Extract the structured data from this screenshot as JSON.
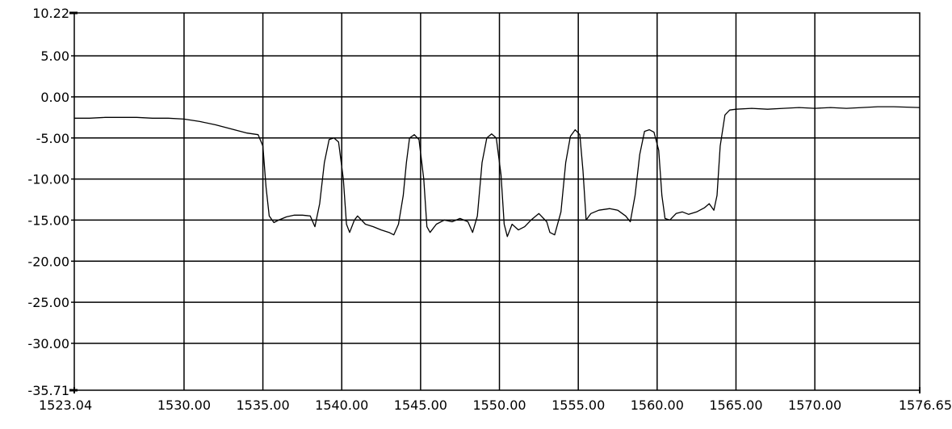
{
  "chart_data": {
    "type": "line",
    "title": "",
    "xlabel": "",
    "ylabel": "",
    "xlim": [
      1523.04,
      1576.65
    ],
    "ylim": [
      -35.71,
      10.22
    ],
    "grid": true,
    "legend": "none",
    "colors": {
      "background": "#ffffff",
      "grid": "#000000",
      "line": "#000000"
    },
    "x_ticks": [
      {
        "value": 1523.04,
        "label": "1523.04"
      },
      {
        "value": 1530.0,
        "label": "1530.00"
      },
      {
        "value": 1535.0,
        "label": "1535.00"
      },
      {
        "value": 1540.0,
        "label": "1540.00"
      },
      {
        "value": 1545.0,
        "label": "1545.00"
      },
      {
        "value": 1550.0,
        "label": "1550.00"
      },
      {
        "value": 1555.0,
        "label": "1555.00"
      },
      {
        "value": 1560.0,
        "label": "1560.00"
      },
      {
        "value": 1565.0,
        "label": "1565.00"
      },
      {
        "value": 1570.0,
        "label": "1570.00"
      },
      {
        "value": 1576.65,
        "label": "1576.65"
      }
    ],
    "y_ticks": [
      {
        "value": 10.22,
        "label": "10.22"
      },
      {
        "value": 5.0,
        "label": "5.00"
      },
      {
        "value": 0.0,
        "label": "0.00"
      },
      {
        "value": -5.0,
        "label": "-5.00"
      },
      {
        "value": -10.0,
        "label": "-10.00"
      },
      {
        "value": -15.0,
        "label": "-15.00"
      },
      {
        "value": -20.0,
        "label": "-20.00"
      },
      {
        "value": -25.0,
        "label": "-25.00"
      },
      {
        "value": -30.0,
        "label": "-30.00"
      },
      {
        "value": -35.71,
        "label": "-35.71"
      }
    ],
    "series": [
      {
        "x": [
          1523.04,
          1524.0,
          1525.0,
          1526.0,
          1527.0,
          1528.0,
          1529.0,
          1530.0,
          1531.0,
          1532.0,
          1533.0,
          1534.0,
          1534.7,
          1535.0,
          1535.2,
          1535.4,
          1535.7,
          1536.0,
          1536.5,
          1537.0,
          1537.5,
          1538.0,
          1538.3,
          1538.6,
          1538.9,
          1539.2,
          1539.5,
          1539.8,
          1540.1,
          1540.3,
          1540.5,
          1540.8,
          1541.0,
          1541.5,
          1542.0,
          1542.5,
          1543.0,
          1543.3,
          1543.6,
          1543.9,
          1544.1,
          1544.3,
          1544.6,
          1544.9,
          1545.2,
          1545.4,
          1545.6,
          1546.0,
          1546.5,
          1547.0,
          1547.5,
          1548.0,
          1548.3,
          1548.6,
          1548.9,
          1549.2,
          1549.5,
          1549.8,
          1550.1,
          1550.3,
          1550.5,
          1550.8,
          1551.2,
          1551.6,
          1552.0,
          1552.5,
          1553.0,
          1553.2,
          1553.5,
          1553.9,
          1554.2,
          1554.5,
          1554.8,
          1555.1,
          1555.3,
          1555.5,
          1555.8,
          1556.3,
          1557.0,
          1557.5,
          1558.0,
          1558.3,
          1558.6,
          1558.9,
          1559.2,
          1559.5,
          1559.8,
          1560.1,
          1560.3,
          1560.5,
          1560.8,
          1561.2,
          1561.6,
          1562.0,
          1562.5,
          1563.0,
          1563.3,
          1563.6,
          1563.8,
          1564.0,
          1564.3,
          1564.6,
          1565.0,
          1566.0,
          1567.0,
          1568.0,
          1569.0,
          1570.0,
          1571.0,
          1572.0,
          1573.0,
          1574.0,
          1575.0,
          1576.65
        ],
        "y": [
          -2.6,
          -2.6,
          -2.5,
          -2.5,
          -2.5,
          -2.6,
          -2.6,
          -2.7,
          -3.0,
          -3.4,
          -3.9,
          -4.4,
          -4.6,
          -6.0,
          -11.0,
          -14.5,
          -15.3,
          -15.0,
          -14.6,
          -14.4,
          -14.4,
          -14.5,
          -15.8,
          -13.0,
          -8.0,
          -5.2,
          -5.0,
          -5.5,
          -10.0,
          -15.5,
          -16.5,
          -15.0,
          -14.5,
          -15.5,
          -15.8,
          -16.2,
          -16.5,
          -16.8,
          -15.5,
          -12.0,
          -8.0,
          -5.0,
          -4.6,
          -5.2,
          -10.0,
          -15.8,
          -16.5,
          -15.5,
          -15.0,
          -15.2,
          -14.8,
          -15.2,
          -16.5,
          -14.5,
          -8.0,
          -5.0,
          -4.5,
          -5.0,
          -9.5,
          -15.5,
          -17.0,
          -15.5,
          -16.2,
          -15.8,
          -15.0,
          -14.2,
          -15.2,
          -16.5,
          -16.8,
          -14.0,
          -8.0,
          -4.8,
          -4.0,
          -4.6,
          -9.0,
          -15.0,
          -14.2,
          -13.8,
          -13.6,
          -13.8,
          -14.5,
          -15.2,
          -12.0,
          -7.0,
          -4.2,
          -4.0,
          -4.3,
          -6.5,
          -12.0,
          -14.8,
          -15.0,
          -14.2,
          -14.0,
          -14.3,
          -14.0,
          -13.5,
          -13.0,
          -13.8,
          -12.0,
          -6.0,
          -2.2,
          -1.6,
          -1.5,
          -1.4,
          -1.5,
          -1.4,
          -1.3,
          -1.4,
          -1.3,
          -1.4,
          -1.3,
          -1.2,
          -1.2,
          -1.3
        ]
      }
    ]
  }
}
